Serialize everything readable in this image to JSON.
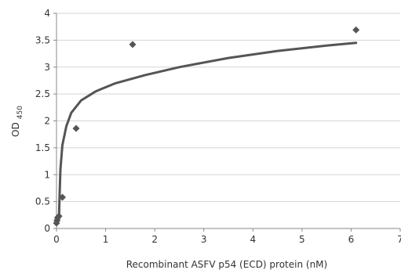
{
  "chart_data": {
    "type": "scatter",
    "title": "",
    "xlabel": "Recombinant ASFV p54 (ECD) protein (nM)",
    "ylabel": {
      "main": "OD",
      "subscript": "450"
    },
    "xlim": [
      0,
      7
    ],
    "ylim": [
      0,
      4
    ],
    "x_ticks": [
      0,
      1,
      2,
      3,
      4,
      5,
      6,
      7
    ],
    "y_ticks": [
      0,
      0.5,
      1,
      1.5,
      2,
      2.5,
      3,
      3.5,
      4
    ],
    "grid": {
      "horizontal": true,
      "vertical": false
    },
    "legend": "none",
    "series": [
      {
        "type": "scatter",
        "marker": "diamond",
        "color": "#555555",
        "points": [
          {
            "x": 0.0,
            "y": 0.1
          },
          {
            "x": 0.01,
            "y": 0.15
          },
          {
            "x": 0.02,
            "y": 0.2
          },
          {
            "x": 0.05,
            "y": 0.23
          },
          {
            "x": 0.12,
            "y": 0.58
          },
          {
            "x": 0.4,
            "y": 1.86
          },
          {
            "x": 1.55,
            "y": 3.42
          },
          {
            "x": 6.1,
            "y": 3.69
          }
        ]
      },
      {
        "type": "line",
        "style": "fitted-curve",
        "color": "#555555",
        "points": [
          {
            "x": 0.05,
            "y": 0.15
          },
          {
            "x": 0.06,
            "y": 0.55
          },
          {
            "x": 0.08,
            "y": 1.1
          },
          {
            "x": 0.12,
            "y": 1.55
          },
          {
            "x": 0.2,
            "y": 1.9
          },
          {
            "x": 0.3,
            "y": 2.15
          },
          {
            "x": 0.5,
            "y": 2.38
          },
          {
            "x": 0.8,
            "y": 2.55
          },
          {
            "x": 1.2,
            "y": 2.7
          },
          {
            "x": 1.8,
            "y": 2.85
          },
          {
            "x": 2.5,
            "y": 3.0
          },
          {
            "x": 3.5,
            "y": 3.17
          },
          {
            "x": 4.5,
            "y": 3.3
          },
          {
            "x": 5.5,
            "y": 3.4
          },
          {
            "x": 6.1,
            "y": 3.45
          }
        ]
      }
    ]
  }
}
